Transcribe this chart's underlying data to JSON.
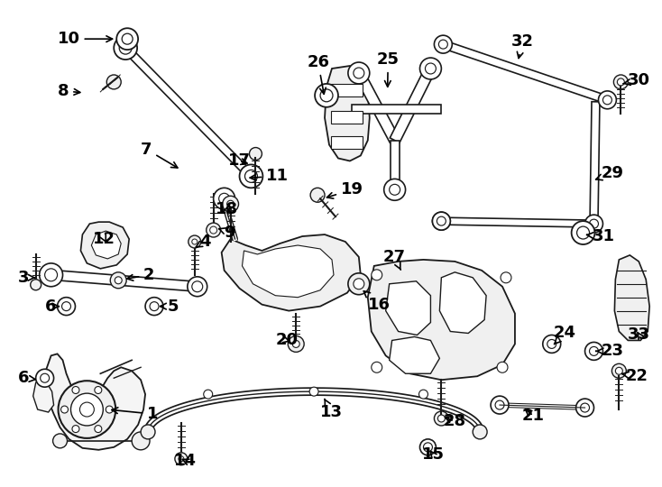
{
  "bg_color": "#ffffff",
  "line_color": "#1a1a1a",
  "figsize": [
    7.34,
    5.4
  ],
  "dpi": 100,
  "label_fontsize": 13
}
